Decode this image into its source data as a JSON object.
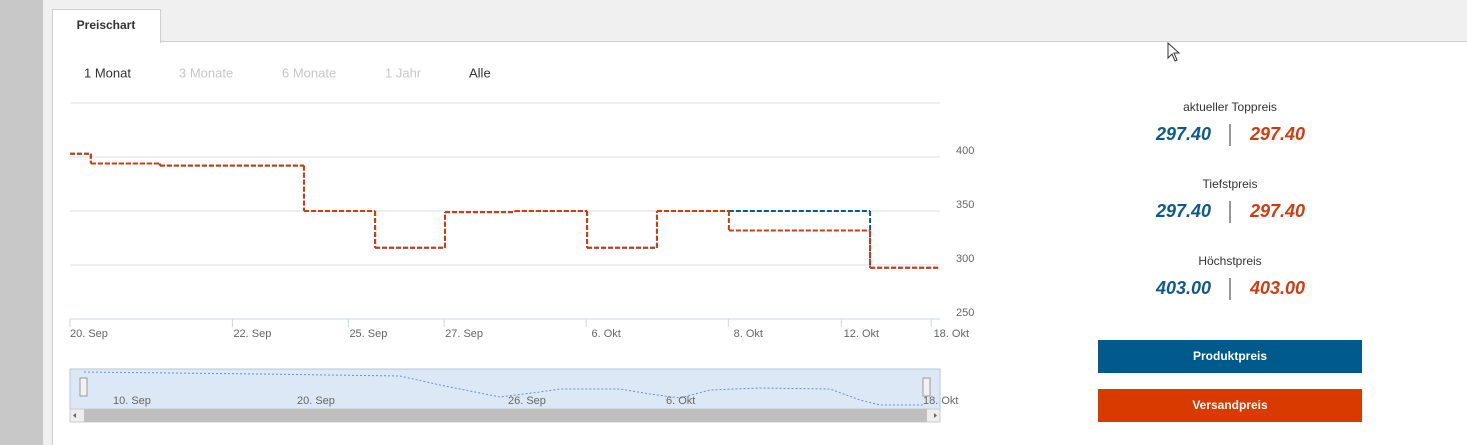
{
  "tab": "Preischart",
  "ranges": [
    "1 Monat",
    "3 Monate",
    "6 Monate",
    "1 Jahr",
    "Alle"
  ],
  "chart_data": {
    "type": "step",
    "x": [
      0,
      0.72,
      3.1,
      8.07,
      10.52,
      12.93,
      15.34,
      17.83,
      20.24,
      22.72,
      27.59
    ],
    "series": [
      {
        "name": "Produktpreis",
        "color": "#0d5a88",
        "values": [
          403,
          394,
          392,
          350,
          316,
          349,
          350,
          316,
          350,
          350,
          297.4
        ]
      },
      {
        "name": "Versandpreis",
        "color": "#d13c0f",
        "values": [
          403,
          394,
          392,
          350,
          316,
          349,
          350,
          316,
          350,
          332,
          297.4
        ]
      }
    ],
    "xlim": [
      0,
      30
    ],
    "xticks": [
      {
        "value": 0,
        "label": "20. Sep"
      },
      {
        "value": 5.6,
        "label": "22. Sep"
      },
      {
        "value": 9.6,
        "label": "25. Sep"
      },
      {
        "value": 12.9,
        "label": "27. Sep"
      },
      {
        "value": 17.8,
        "label": "6. Okt"
      },
      {
        "value": 22.7,
        "label": "8. Okt"
      },
      {
        "value": 26.6,
        "label": "12. Okt"
      },
      {
        "value": 29.7,
        "label": "18. Okt"
      }
    ],
    "ylim": [
      250,
      450
    ],
    "yticks": [
      250,
      300,
      350,
      400
    ],
    "grid": true
  },
  "navigator": {
    "labels": [
      "10. Sep",
      "20. Sep",
      "26. Sep",
      "6. Okt",
      "18. Okt"
    ]
  },
  "panel": [
    {
      "label": "aktueller Toppreis",
      "values": [
        "297.40",
        "297.40"
      ]
    },
    {
      "label": "Tiefstpreis",
      "values": [
        "297.40",
        "297.40"
      ]
    },
    {
      "label": "Höchstpreis",
      "values": [
        "403.00",
        "403.00"
      ]
    }
  ]
}
